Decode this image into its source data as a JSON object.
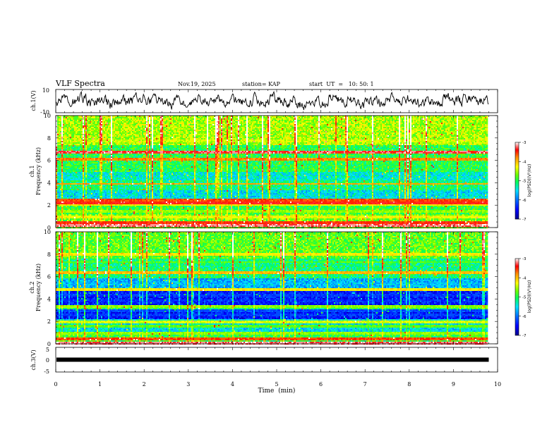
{
  "header": {
    "title": "VLF Spectra",
    "date": "Nov.19, 2025",
    "station": "station= KAP",
    "start_time": "start  UT  =   10: 50: 1"
  },
  "colors": {
    "line": "#000000",
    "colormap": [
      "#08008c",
      "#0000ff",
      "#0070ff",
      "#00e0ff",
      "#00ff60",
      "#70ff00",
      "#ffff00",
      "#ff9000",
      "#ff0000",
      "#ffffff"
    ]
  },
  "chart_data": [
    {
      "type": "line",
      "id": "ch1-waveform",
      "ylabel": "ch.1(V)",
      "ylim": [
        -10,
        10
      ],
      "yticks": [
        "10",
        "-10"
      ],
      "description_values": {
        "duration_min": 9.8,
        "mean_v": 0,
        "amplitude_v": 4
      }
    },
    {
      "type": "heatmap",
      "id": "ch1-spectrogram",
      "ylabel": "ch.1\nFrequency  (kHz)",
      "ylim": [
        0,
        10
      ],
      "yticks": [
        "0",
        "2",
        "4",
        "6",
        "8",
        "10"
      ],
      "colorbar": {
        "label": "log(PSD)(V²/Hz)",
        "range": [
          -7,
          -3
        ],
        "ticks": [
          "-3",
          "-4",
          "-5",
          "-6",
          "-7"
        ]
      },
      "bands_khz": [
        {
          "f": 0.15,
          "level": -3.2
        },
        {
          "f": 0.4,
          "level": -3.5
        },
        {
          "f": 0.9,
          "level": -4.3
        },
        {
          "f": 1.5,
          "level": -4.6
        },
        {
          "f": 2.05,
          "level": -4.2
        },
        {
          "f": 2.2,
          "level": -3.4
        },
        {
          "f": 2.45,
          "level": -3.6
        },
        {
          "f": 3.0,
          "level": -5.8
        },
        {
          "f": 3.9,
          "level": -3.9
        },
        {
          "f": 4.3,
          "level": -5.6
        },
        {
          "f": 4.8,
          "level": -5.8
        },
        {
          "f": 5.3,
          "level": -5.3
        },
        {
          "f": 6.1,
          "level": -3.8
        },
        {
          "f": 6.7,
          "level": -3.3
        },
        {
          "f": 7.7,
          "level": -4.5
        }
      ]
    },
    {
      "type": "heatmap",
      "id": "ch2-spectrogram",
      "ylabel": "ch.2\nFrequency  (kHz)",
      "ylim": [
        0,
        10
      ],
      "yticks": [
        "0",
        "2",
        "4",
        "6",
        "8",
        "10"
      ],
      "colorbar": {
        "label": "log(PSD)(V²/Hz)",
        "range": [
          -7,
          -3
        ],
        "ticks": [
          "-3",
          "-4",
          "-5",
          "-6",
          "-7"
        ]
      },
      "bands_khz": [
        {
          "f": 0.1,
          "level": -3.2
        },
        {
          "f": 0.4,
          "level": -3.6
        },
        {
          "f": 1.0,
          "level": -4.6
        },
        {
          "f": 1.6,
          "level": -4.8
        },
        {
          "f": 2.0,
          "level": -4.4
        },
        {
          "f": 2.6,
          "level": -6.3
        },
        {
          "f": 3.0,
          "level": -6.2
        },
        {
          "f": 3.3,
          "level": -4.6
        },
        {
          "f": 3.8,
          "level": -6.4
        },
        {
          "f": 4.3,
          "level": -6.3
        },
        {
          "f": 4.8,
          "level": -4.2
        },
        {
          "f": 5.4,
          "level": -5.8
        },
        {
          "f": 6.3,
          "level": -4.0
        },
        {
          "f": 7.3,
          "level": -4.8
        },
        {
          "f": 8.0,
          "level": -4.2
        }
      ]
    },
    {
      "type": "line",
      "id": "ch3-waveform",
      "ylabel": "ch.3(V)",
      "ylim": [
        -5,
        5
      ],
      "yticks": [
        "5",
        "0",
        "-5"
      ],
      "level_v": 0.0
    }
  ],
  "xaxis": {
    "label": "Time  (min)",
    "range": [
      0,
      10
    ],
    "ticks": [
      "0",
      "1",
      "2",
      "3",
      "4",
      "5",
      "6",
      "7",
      "8",
      "9",
      "10"
    ],
    "data_end_min": 9.8
  }
}
